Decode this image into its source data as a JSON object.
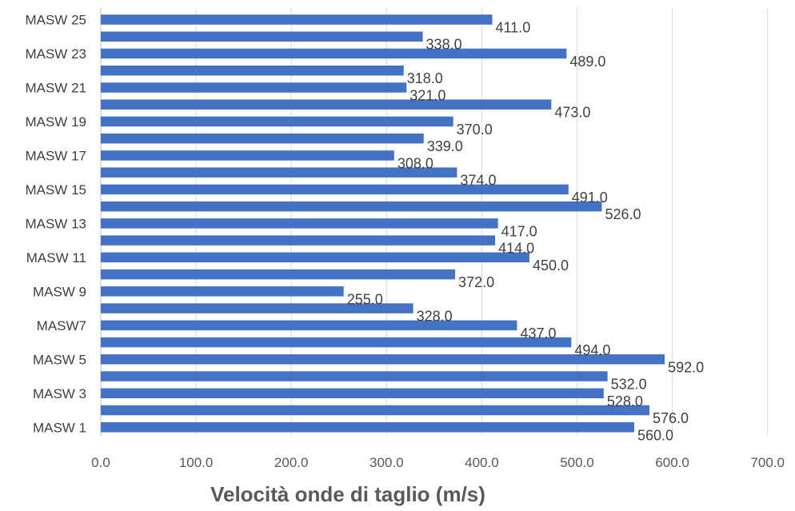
{
  "chart_data": {
    "type": "bar",
    "orientation": "horizontal",
    "title": "",
    "xlabel": "Velocità onde di taglio (m/s)",
    "ylabel": "",
    "xlim": [
      0,
      700
    ],
    "x_ticks": [
      "0.0",
      "100.0",
      "200.0",
      "300.0",
      "400.0",
      "500.0",
      "600.0",
      "700.0"
    ],
    "grid": true,
    "legend": "none",
    "bar_color": "#4472C4",
    "categories": [
      "MASW 1",
      "",
      "MASW 3",
      "",
      "MASW 5",
      "",
      "MASW7",
      "",
      "MASW 9",
      "",
      "MASW 11",
      "",
      "MASW 13",
      "",
      "MASW 15",
      "",
      "MASW 17",
      "",
      "MASW 19",
      "",
      "MASW 21",
      "",
      "MASW 23",
      "",
      "MASW 25"
    ],
    "values": [
      560,
      576,
      528,
      532,
      592,
      494,
      437,
      328,
      255,
      372,
      450,
      414,
      417,
      526,
      491,
      374,
      308,
      339,
      370,
      473,
      321,
      318,
      489,
      338,
      411
    ],
    "data_labels": [
      "560.0",
      "576.0",
      "528.0",
      "532.0",
      "592.0",
      "494.0",
      "437.0",
      "328.0",
      "255.0",
      "372.0",
      "450.0",
      "414.0",
      "417.0",
      "526.0",
      "491.0",
      "374.0",
      "308.0",
      "339.0",
      "370.0",
      "473.0",
      "321.0",
      "318.0",
      "489.0",
      "338.0",
      "411.0"
    ]
  }
}
